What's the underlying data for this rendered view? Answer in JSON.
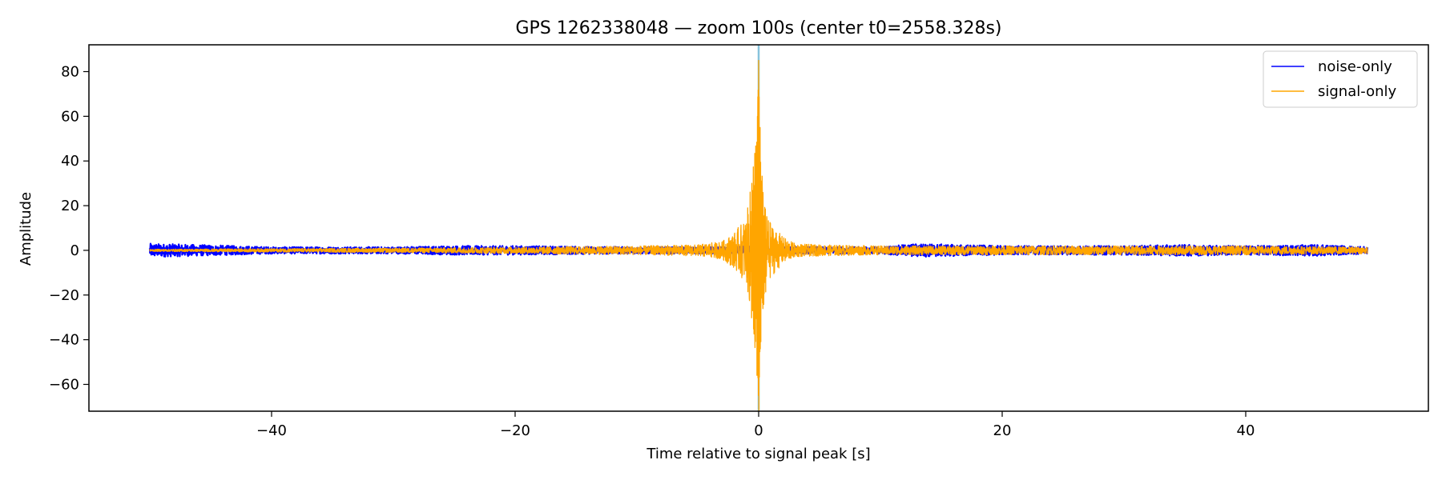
{
  "chart_data": {
    "type": "line",
    "title": "GPS 1262338048 — zoom 100s (center t0=2558.328s)",
    "xlabel": "Time relative to signal peak [s]",
    "ylabel": "Amplitude",
    "xlim": [
      -55,
      55
    ],
    "ylim": [
      -72,
      92
    ],
    "xticks": [
      -40,
      -20,
      0,
      20,
      40
    ],
    "yticks": [
      -60,
      -40,
      -20,
      0,
      20,
      40,
      60,
      80
    ],
    "xtick_labels": [
      "−40",
      "−20",
      "0",
      "20",
      "40"
    ],
    "ytick_labels": [
      "−60",
      "−40",
      "−20",
      "0",
      "20",
      "40",
      "60",
      "80"
    ],
    "grid": false,
    "legend_position": "top-right",
    "vline": {
      "x": 0,
      "color": "#87c3dc"
    },
    "series": [
      {
        "name": "noise-only",
        "color": "#0000ff",
        "x_range": [
          -50,
          50
        ],
        "envelope": [
          [
            -50,
            3
          ],
          [
            -46,
            2.5
          ],
          [
            -40,
            1.5
          ],
          [
            -30,
            1.5
          ],
          [
            -25,
            2
          ],
          [
            -20,
            2
          ],
          [
            -10,
            1.5
          ],
          [
            -3,
            1.5
          ],
          [
            0,
            2
          ],
          [
            3,
            1.5
          ],
          [
            10,
            1.5
          ],
          [
            13,
            3
          ],
          [
            20,
            2
          ],
          [
            30,
            2
          ],
          [
            35,
            2.5
          ],
          [
            40,
            2
          ],
          [
            46,
            2.5
          ],
          [
            50,
            1.5
          ]
        ]
      },
      {
        "name": "signal-only",
        "color": "#ffa500",
        "x_range": [
          -50,
          50
        ],
        "peak": {
          "x": 0,
          "max": 85,
          "min": -65
        },
        "envelope": [
          [
            -50,
            0.5
          ],
          [
            -40,
            0.8
          ],
          [
            -30,
            1
          ],
          [
            -20,
            1.5
          ],
          [
            -10,
            2
          ],
          [
            -5,
            2.5
          ],
          [
            -3,
            4
          ],
          [
            -2,
            8
          ],
          [
            -1,
            15
          ],
          [
            -0.5,
            35
          ],
          [
            -0.2,
            50
          ],
          [
            0,
            85
          ],
          [
            0.2,
            40
          ],
          [
            0.5,
            20
          ],
          [
            1,
            12
          ],
          [
            2,
            6
          ],
          [
            3,
            3
          ],
          [
            5,
            2.5
          ],
          [
            10,
            2
          ],
          [
            20,
            2
          ],
          [
            30,
            2
          ],
          [
            40,
            2
          ],
          [
            50,
            1.5
          ]
        ]
      }
    ]
  }
}
